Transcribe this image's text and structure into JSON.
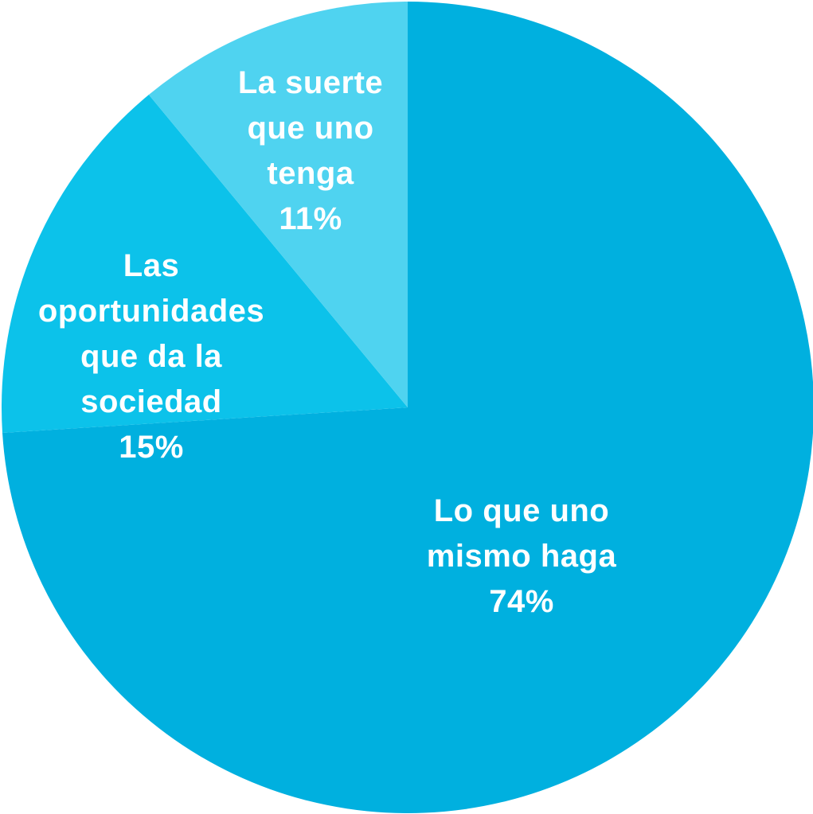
{
  "chart_data": {
    "type": "pie",
    "title": "",
    "start_angle_deg": 0,
    "direction": "clockwise",
    "grid": false,
    "legend": "none",
    "slices": [
      {
        "label_lines": [
          "Lo que uno",
          "mismo haga"
        ],
        "value": 74,
        "value_label": "74%",
        "color": "#00b0df"
      },
      {
        "label_lines": [
          "Las",
          "oportunidades",
          "que da la",
          "sociedad"
        ],
        "value": 15,
        "value_label": "15%",
        "color": "#0cc2ea"
      },
      {
        "label_lines": [
          "La suerte",
          "que uno",
          "tenga"
        ],
        "value": 11,
        "value_label": "11%",
        "color": "#4fd3f0"
      }
    ]
  }
}
